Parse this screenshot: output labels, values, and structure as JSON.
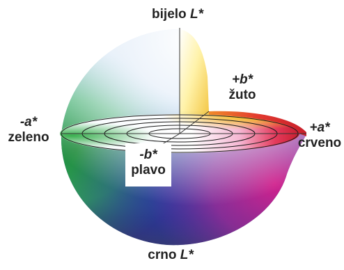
{
  "figure": {
    "axis_white": {
      "name": "bijelo",
      "symbol": "L*"
    },
    "axis_black": {
      "name": "crno",
      "symbol": "L*"
    },
    "axis_yellow": {
      "name": "žuto",
      "symbol": "+b*"
    },
    "axis_green": {
      "name": "zeleno",
      "symbol": "-a*"
    },
    "axis_red": {
      "name": "crveno",
      "symbol": "+a*"
    },
    "axis_blue": {
      "name": "plavo",
      "symbol": "-b*"
    }
  },
  "colors": {
    "white": "#ffffff",
    "blue": "#3d5fb0",
    "navy": "#1c2a6e",
    "green": "#2aa84a",
    "yellow": "#f2d21e",
    "red": "#d8263a",
    "magenta": "#c02a96",
    "orange": "#e8802a",
    "ring_stroke": "#1a1a1a"
  }
}
